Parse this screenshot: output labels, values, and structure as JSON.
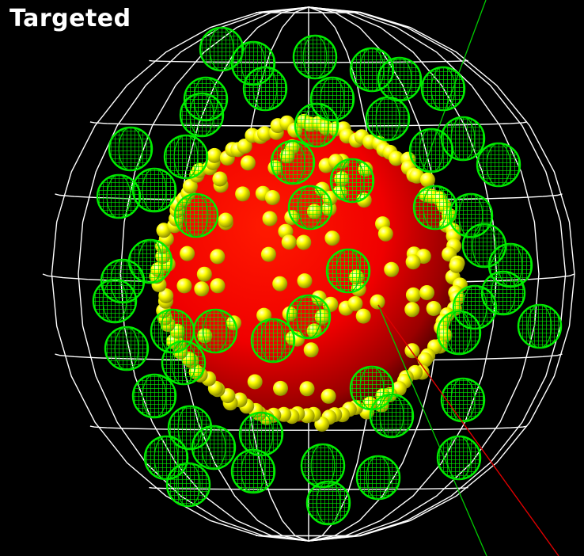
{
  "title": "Targeted",
  "colors": {
    "background": "#000000",
    "wire_sphere": "#ffffff",
    "core_sphere": "#ff0000",
    "green_mesh": "#00ee00",
    "yellow_balls": "#ffff00",
    "line_green": "#00cc00",
    "line_red": "#dd0000"
  }
}
